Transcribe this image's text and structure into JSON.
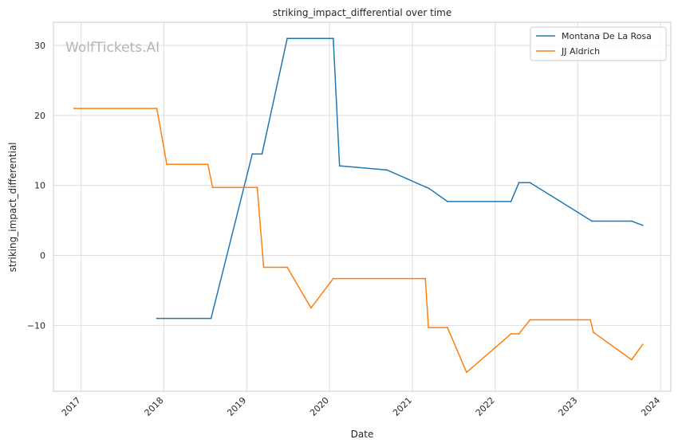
{
  "chart_data": {
    "type": "line",
    "title": "striking_impact_differential over time",
    "xlabel": "Date",
    "ylabel": "striking_impact_differential",
    "watermark": "WolfTickets.AI",
    "x_ticks": [
      "2017",
      "2018",
      "2019",
      "2020",
      "2021",
      "2022",
      "2023",
      "2024"
    ],
    "y_ticks": [
      "−10",
      "0",
      "10",
      "20",
      "30"
    ],
    "xlim": [
      "2016-09-01",
      "2024-02-15"
    ],
    "ylim": [
      -19.4,
      33.3
    ],
    "grid": true,
    "legend_position": "top-right",
    "series": [
      {
        "name": "Montana De La Rosa",
        "color": "#1f77b4",
        "x": [
          "2017-12-01",
          "2018-07-28",
          "2019-01-26",
          "2019-03-10",
          "2019-06-29",
          "2020-01-18",
          "2020-02-15",
          "2020-09-12",
          "2021-02-27",
          "2021-03-14",
          "2021-06-05",
          "2022-03-12",
          "2022-04-16",
          "2022-06-04",
          "2023-03-04",
          "2023-08-26",
          "2023-10-14"
        ],
        "y": [
          -9.0,
          -9.0,
          14.5,
          14.5,
          31.0,
          31.0,
          12.8,
          12.2,
          9.8,
          9.6,
          7.7,
          7.7,
          10.4,
          10.4,
          4.9,
          4.9,
          4.3
        ]
      },
      {
        "name": "JJ Aldrich",
        "color": "#ff7f0e",
        "x": [
          "2016-12-01",
          "2017-12-01",
          "2018-01-14",
          "2018-07-14",
          "2018-08-04",
          "2019-02-17",
          "2019-03-17",
          "2019-06-29",
          "2019-10-12",
          "2020-01-18",
          "2021-02-27",
          "2021-03-13",
          "2021-06-05",
          "2021-08-28",
          "2022-03-12",
          "2022-04-16",
          "2022-06-04",
          "2023-02-25",
          "2023-03-11",
          "2023-08-26",
          "2023-10-14"
        ],
        "y": [
          21.0,
          21.0,
          13.0,
          13.0,
          9.7,
          9.7,
          -1.7,
          -1.7,
          -7.5,
          -3.3,
          -3.3,
          -10.3,
          -10.3,
          -16.7,
          -11.2,
          -11.2,
          -9.2,
          -9.2,
          -11.0,
          -14.9,
          -12.7
        ]
      }
    ]
  }
}
